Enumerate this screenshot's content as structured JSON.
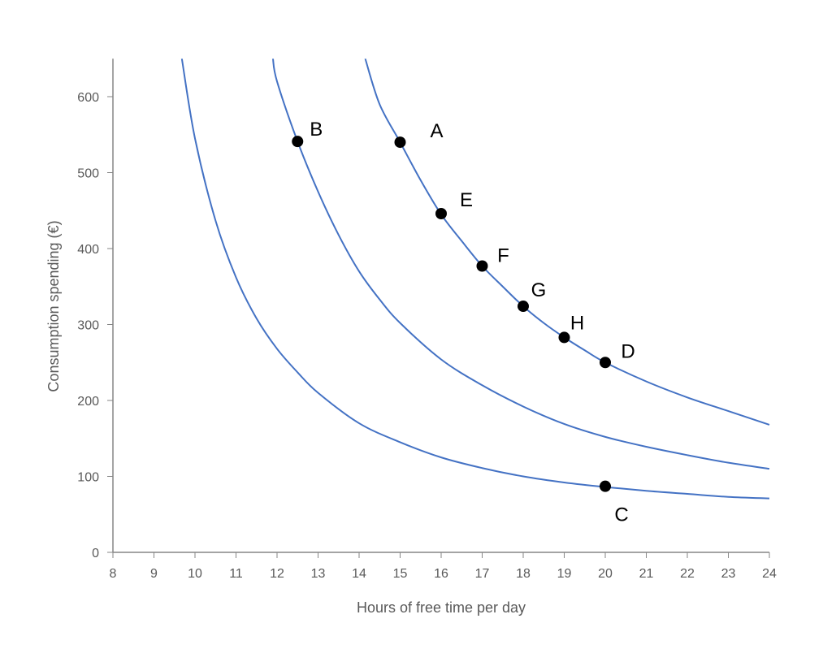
{
  "chart_data": {
    "type": "line",
    "title": "",
    "xlabel": "Hours of free time per day",
    "ylabel": "Consumption spending (€)",
    "xlim": [
      8,
      24
    ],
    "ylim": [
      0,
      650
    ],
    "x_ticks": [
      8,
      9,
      10,
      11,
      12,
      13,
      14,
      15,
      16,
      17,
      18,
      19,
      20,
      21,
      22,
      23,
      24
    ],
    "y_ticks": [
      0,
      100,
      200,
      300,
      400,
      500,
      600
    ],
    "grid": false,
    "legend": "none",
    "series": [
      {
        "color": "#4472C4",
        "x": [
          9.68,
          10,
          10.5,
          11,
          11.5,
          12,
          12.5,
          13,
          14,
          15,
          16,
          17,
          18,
          19,
          20,
          21,
          22,
          23,
          24
        ],
        "y": [
          650,
          545,
          437,
          362,
          308,
          268,
          237,
          210,
          170,
          145,
          125,
          111,
          100,
          92,
          86,
          81,
          77,
          73,
          71
        ]
      },
      {
        "color": "#4472C4",
        "x": [
          11.9,
          12,
          12.5,
          13,
          13.5,
          14,
          14.5,
          15,
          16,
          17,
          18,
          19,
          20,
          21,
          22,
          23,
          24
        ],
        "y": [
          650,
          620,
          541,
          475,
          418,
          370,
          333,
          302,
          254,
          220,
          192,
          169,
          152,
          139,
          128,
          118,
          110
        ]
      },
      {
        "color": "#4472C4",
        "x": [
          14.15,
          14.5,
          15,
          15.5,
          16,
          16.5,
          17,
          17.5,
          18,
          18.5,
          19,
          19.5,
          20,
          21,
          22,
          23,
          24
        ],
        "y": [
          650,
          590,
          540,
          490,
          445,
          410,
          377,
          350,
          324,
          302,
          283,
          266,
          250,
          225,
          204,
          186,
          168
        ]
      }
    ],
    "points": [
      {
        "label": "A",
        "x": 15,
        "y": 540
      },
      {
        "label": "B",
        "x": 12.5,
        "y": 541
      },
      {
        "label": "C",
        "x": 20,
        "y": 87
      },
      {
        "label": "D",
        "x": 20,
        "y": 250
      },
      {
        "label": "E",
        "x": 16,
        "y": 446
      },
      {
        "label": "F",
        "x": 17,
        "y": 377
      },
      {
        "label": "G",
        "x": 18,
        "y": 324
      },
      {
        "label": "H",
        "x": 19,
        "y": 283
      }
    ]
  }
}
